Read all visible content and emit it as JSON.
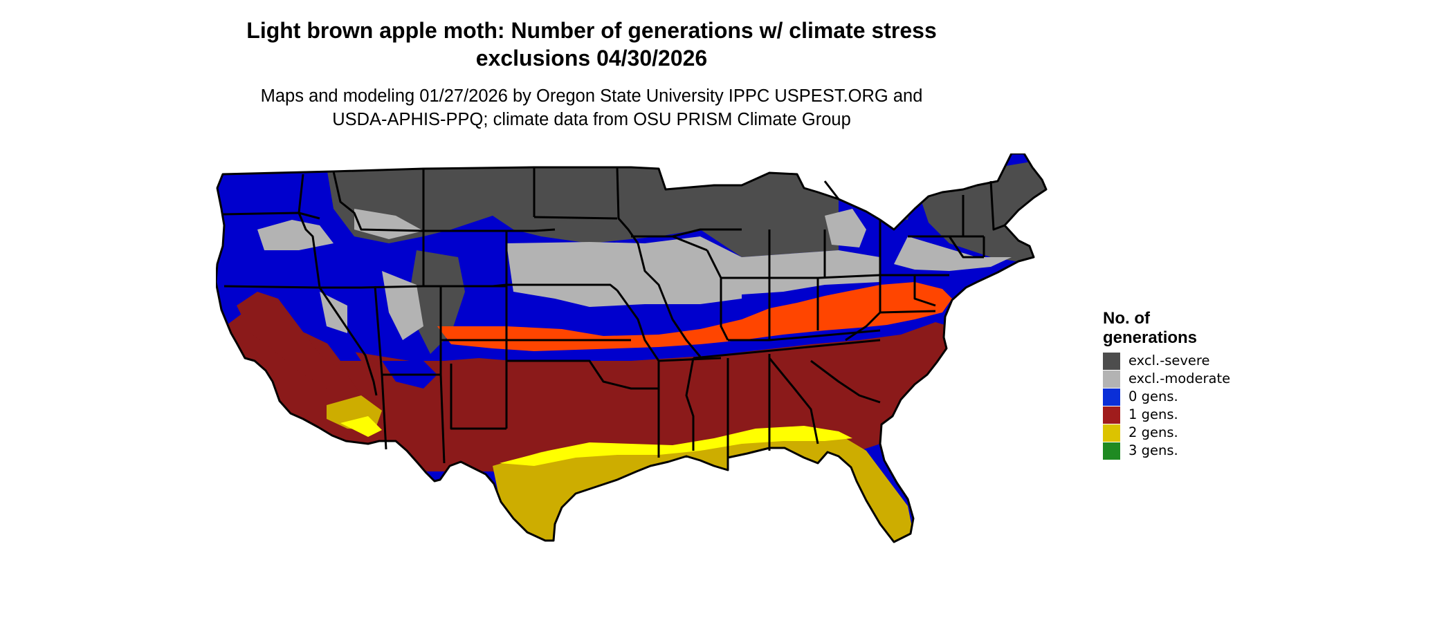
{
  "title_line1": "Light brown apple moth: Number of generations w/ climate stress",
  "title_line2": "exclusions 04/30/2026",
  "subtitle_line1": "Maps and modeling 01/27/2026 by Oregon State University IPPC USPEST.ORG and",
  "subtitle_line2": "USDA-APHIS-PPQ; climate data from OSU PRISM Climate Group",
  "legend": {
    "title_line1": "No. of",
    "title_line2": "generations",
    "items": [
      {
        "label": "excl.-severe",
        "color": "#4d4d4d"
      },
      {
        "label": "excl.-moderate",
        "color": "#b3b3b3"
      },
      {
        "label": "0 gens.",
        "color": "#0a2fd8"
      },
      {
        "label": "1 gens.",
        "color": "#a01c1c"
      },
      {
        "label": "2 gens.",
        "color": "#dcc300"
      },
      {
        "label": "3 gens.",
        "color": "#1f8a22"
      }
    ]
  },
  "colors": {
    "excl_severe": "#4d4d4d",
    "excl_moderate": "#b3b3b3",
    "gens0": "#0000cd",
    "gens1": "#8b1a1a",
    "gens1_orange": "#ff4500",
    "gens2": "#cdad00",
    "gens2_bright": "#ffff00",
    "gens3": "#1f8a22",
    "border": "#000000"
  }
}
